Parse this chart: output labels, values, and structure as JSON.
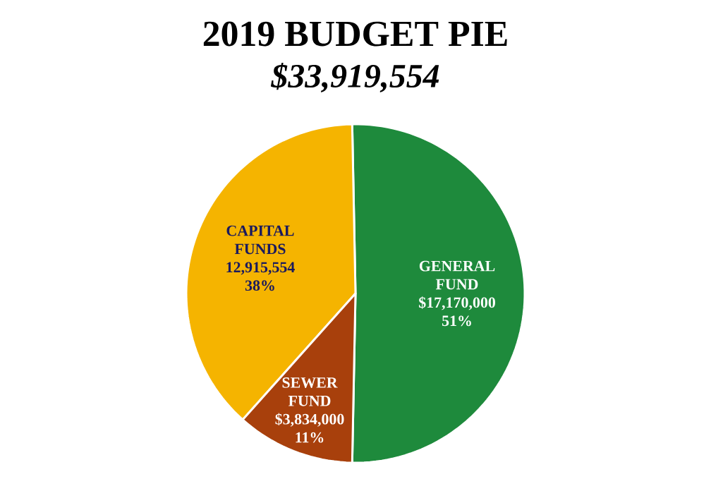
{
  "chart_data": {
    "type": "pie",
    "title": "2019 BUDGET PIE",
    "subtitle": "$33,919,554",
    "categories": [
      "GENERAL FUND",
      "CAPITAL FUNDS",
      "SEWER FUND"
    ],
    "values": [
      17170000,
      12915554,
      3834000
    ],
    "value_labels": [
      "$17,170,000 51%",
      "12,915,554 38%",
      "$3,834,000 11%"
    ],
    "colors": [
      "#1e8a3c",
      "#f5b400",
      "#a8400c"
    ]
  }
}
